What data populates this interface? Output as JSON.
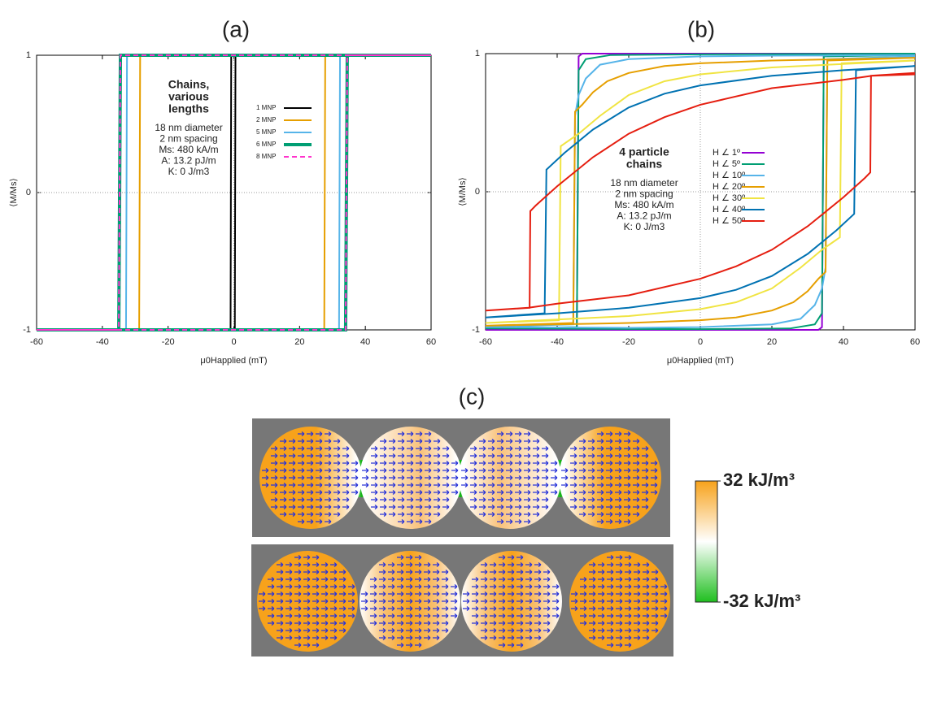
{
  "chart_data": [
    {
      "type": "line",
      "title": "(a)",
      "xlabel": "μ0Happlied (mT)",
      "ylabel": "⟨M/Ms⟩",
      "xlim": [
        -60,
        60
      ],
      "ylim": [
        -1,
        1
      ],
      "xticks": [
        -60,
        -40,
        -20,
        0,
        20,
        40,
        60
      ],
      "yticks": [
        -1,
        0,
        1
      ],
      "zero_lines": true,
      "annotation_title": [
        "Chains,",
        "various",
        "lengths"
      ],
      "annotation_lines": [
        "18 nm diameter",
        "2 nm  spacing",
        "Ms:  480  kA/m",
        "A:  13.2  pJ/m",
        "K:    0  J/m3"
      ],
      "series": [
        {
          "name": "1 MNP",
          "color": "#000000",
          "width": 2,
          "x": [
            60,
            -0.8,
            -1,
            -60,
            0.3,
            0.5,
            60
          ],
          "values": [
            1,
            1,
            -1,
            -1,
            -1,
            1,
            1
          ]
        },
        {
          "name": "2 MNP",
          "color": "#e69f00",
          "width": 2,
          "x": [
            60,
            -28.5,
            -28.8,
            -60,
            27.5,
            27.8,
            60
          ],
          "values": [
            1,
            1,
            -1,
            -1,
            -1,
            1,
            1
          ]
        },
        {
          "name": "5 MNP",
          "color": "#56b4e9",
          "width": 2,
          "x": [
            60,
            -32.5,
            -32.8,
            -60,
            32,
            32.3,
            60
          ],
          "values": [
            1,
            1,
            -1,
            -1,
            -1,
            1,
            1
          ]
        },
        {
          "name": "6 MNP",
          "color": "#009e73",
          "width": 4,
          "x": [
            60,
            -34.5,
            -35,
            -60,
            34,
            34.5,
            60
          ],
          "values": [
            1,
            1,
            -1,
            -1,
            -1,
            1,
            1
          ]
        },
        {
          "name": "8 MNP",
          "color": "#ff33cc",
          "width": 2,
          "dash": true,
          "x": [
            60,
            -34.5,
            -35,
            -60,
            34,
            34.5,
            60
          ],
          "values": [
            1,
            1,
            -1,
            -1,
            -1,
            1,
            1
          ]
        }
      ]
    },
    {
      "type": "line",
      "title": "(b)",
      "xlabel": "μ0Happlied (mT)",
      "ylabel": "⟨M/Ms⟩",
      "xlim": [
        -60,
        60
      ],
      "ylim": [
        -1,
        1
      ],
      "xticks": [
        -60,
        -40,
        -20,
        0,
        20,
        40,
        60
      ],
      "yticks": [
        -1,
        0,
        1
      ],
      "zero_lines": true,
      "annotation_title": [
        "4 particle",
        "chains"
      ],
      "annotation_lines": [
        "18 nm diameter",
        "2 nm  spacing",
        "Ms:  480  kA/m",
        "A:  13.2  pJ/m",
        "K:    0  J/m3"
      ],
      "series": [
        {
          "name": "H ∠   1º",
          "color": "#9400d3",
          "width": 2,
          "x": [
            60,
            -33,
            -34,
            -34.5,
            -60,
            33,
            34,
            34.5,
            60
          ],
          "values": [
            1,
            1,
            0.98,
            -1,
            -1,
            -1,
            -0.98,
            1,
            1
          ]
        },
        {
          "name": "H ∠   5º",
          "color": "#009e73",
          "width": 2,
          "x": [
            60,
            0,
            -25,
            -32,
            -34,
            -34.5,
            -60,
            0,
            25,
            32,
            34,
            34.5,
            60
          ],
          "values": [
            1,
            0.995,
            0.99,
            0.96,
            0.88,
            -0.98,
            -0.99,
            -0.995,
            -0.99,
            -0.96,
            -0.88,
            0.98,
            0.99
          ]
        },
        {
          "name": "H ∠  10º",
          "color": "#56b4e9",
          "width": 2,
          "x": [
            60,
            20,
            0,
            -20,
            -28,
            -32,
            -34,
            -35,
            -35.5,
            -60,
            -20,
            0,
            20,
            28,
            32,
            34,
            35,
            35.5,
            60
          ],
          "values": [
            0.99,
            0.985,
            0.98,
            0.96,
            0.92,
            0.82,
            0.7,
            0.55,
            -0.96,
            -0.98,
            -0.985,
            -0.98,
            -0.96,
            -0.92,
            -0.82,
            -0.7,
            -0.55,
            0.96,
            0.98
          ]
        },
        {
          "name": "H ∠  20º",
          "color": "#e69f00",
          "width": 2,
          "x": [
            60,
            20,
            0,
            -10,
            -20,
            -26,
            -30,
            -33,
            -35,
            -35.5,
            -60,
            -20,
            0,
            10,
            20,
            26,
            30,
            33,
            35,
            35.5,
            60
          ],
          "values": [
            0.97,
            0.95,
            0.93,
            0.91,
            0.86,
            0.8,
            0.72,
            0.63,
            0.58,
            -0.95,
            -0.97,
            -0.95,
            -0.93,
            -0.91,
            -0.86,
            -0.8,
            -0.72,
            -0.63,
            -0.58,
            0.95,
            0.97
          ]
        },
        {
          "name": "H ∠  30º",
          "color": "#f0e442",
          "width": 2,
          "x": [
            60,
            20,
            0,
            -10,
            -20,
            -28,
            -34,
            -39,
            -39.5,
            -60,
            -20,
            0,
            10,
            20,
            28,
            34,
            39,
            39.5,
            60
          ],
          "values": [
            0.95,
            0.9,
            0.85,
            0.8,
            0.7,
            0.55,
            0.42,
            0.33,
            -0.93,
            -0.95,
            -0.9,
            -0.85,
            -0.8,
            -0.7,
            -0.55,
            -0.42,
            -0.33,
            0.93,
            0.95
          ]
        },
        {
          "name": "H ∠  40º",
          "color": "#0072b2",
          "width": 2,
          "x": [
            60,
            40,
            20,
            0,
            -10,
            -20,
            -30,
            -38,
            -43,
            -43.5,
            -60,
            -40,
            -20,
            0,
            10,
            20,
            30,
            38,
            43,
            43.5,
            60
          ],
          "values": [
            0.91,
            0.88,
            0.84,
            0.77,
            0.71,
            0.61,
            0.45,
            0.28,
            0.16,
            -0.88,
            -0.91,
            -0.88,
            -0.84,
            -0.77,
            -0.71,
            -0.61,
            -0.45,
            -0.28,
            -0.16,
            0.88,
            0.91
          ]
        },
        {
          "name": "H ∠  50º",
          "color": "#e51e10",
          "width": 2,
          "x": [
            60,
            48,
            40,
            20,
            0,
            -10,
            -20,
            -30,
            -40,
            -46,
            -47.5,
            -47.7,
            -60,
            -48,
            -40,
            -20,
            0,
            10,
            20,
            30,
            40,
            46,
            47.5,
            47.7,
            60
          ],
          "values": [
            0.85,
            0.84,
            0.81,
            0.75,
            0.63,
            0.54,
            0.42,
            0.25,
            0.04,
            -0.1,
            -0.14,
            -0.84,
            -0.86,
            -0.84,
            -0.81,
            -0.75,
            -0.63,
            -0.54,
            -0.42,
            -0.25,
            -0.04,
            0.1,
            0.14,
            0.84,
            0.86
          ]
        }
      ]
    },
    {
      "type": "image",
      "title": "(c)",
      "colorbar": {
        "colors": [
          "#f7a21b",
          "#ffffff",
          "#1fbf1f"
        ],
        "ticks": [
          {
            "value": 32,
            "label": "32 kJ/m³"
          },
          {
            "value": -32,
            "label": "-32 kJ/m³"
          }
        ]
      }
    }
  ]
}
